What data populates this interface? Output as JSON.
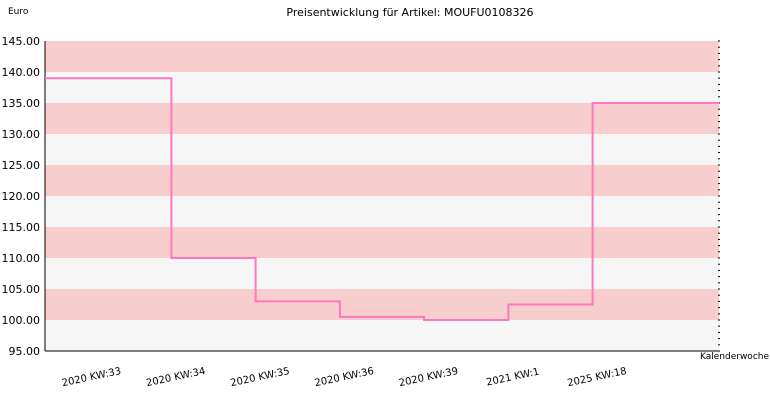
{
  "chart_data": {
    "type": "line",
    "title": "Preisentwicklung für Artikel: MOUFU0108326",
    "ylabel": "Euro",
    "xlabel": "Kalenderwoche",
    "ylim": [
      95,
      145
    ],
    "yticks": [
      "95.00",
      "100.00",
      "105.00",
      "110.00",
      "115.00",
      "120.00",
      "125.00",
      "130.00",
      "135.00",
      "140.00",
      "145.00"
    ],
    "categories": [
      "2020 KW:33",
      "2020 KW:34",
      "2020 KW:35",
      "2020 KW:36",
      "2020 KW:39",
      "2021 KW:1",
      "2025 KW:18"
    ],
    "series": [
      {
        "values": [
          139.0,
          110.0,
          103.0,
          100.5,
          100.0,
          102.5,
          135.0
        ],
        "step": true
      }
    ],
    "colors": {
      "line": "#ff77c0",
      "band_pink": "#f8cdcd",
      "band_light": "#f6f6f6",
      "axis": "#000000"
    },
    "grid": false
  }
}
